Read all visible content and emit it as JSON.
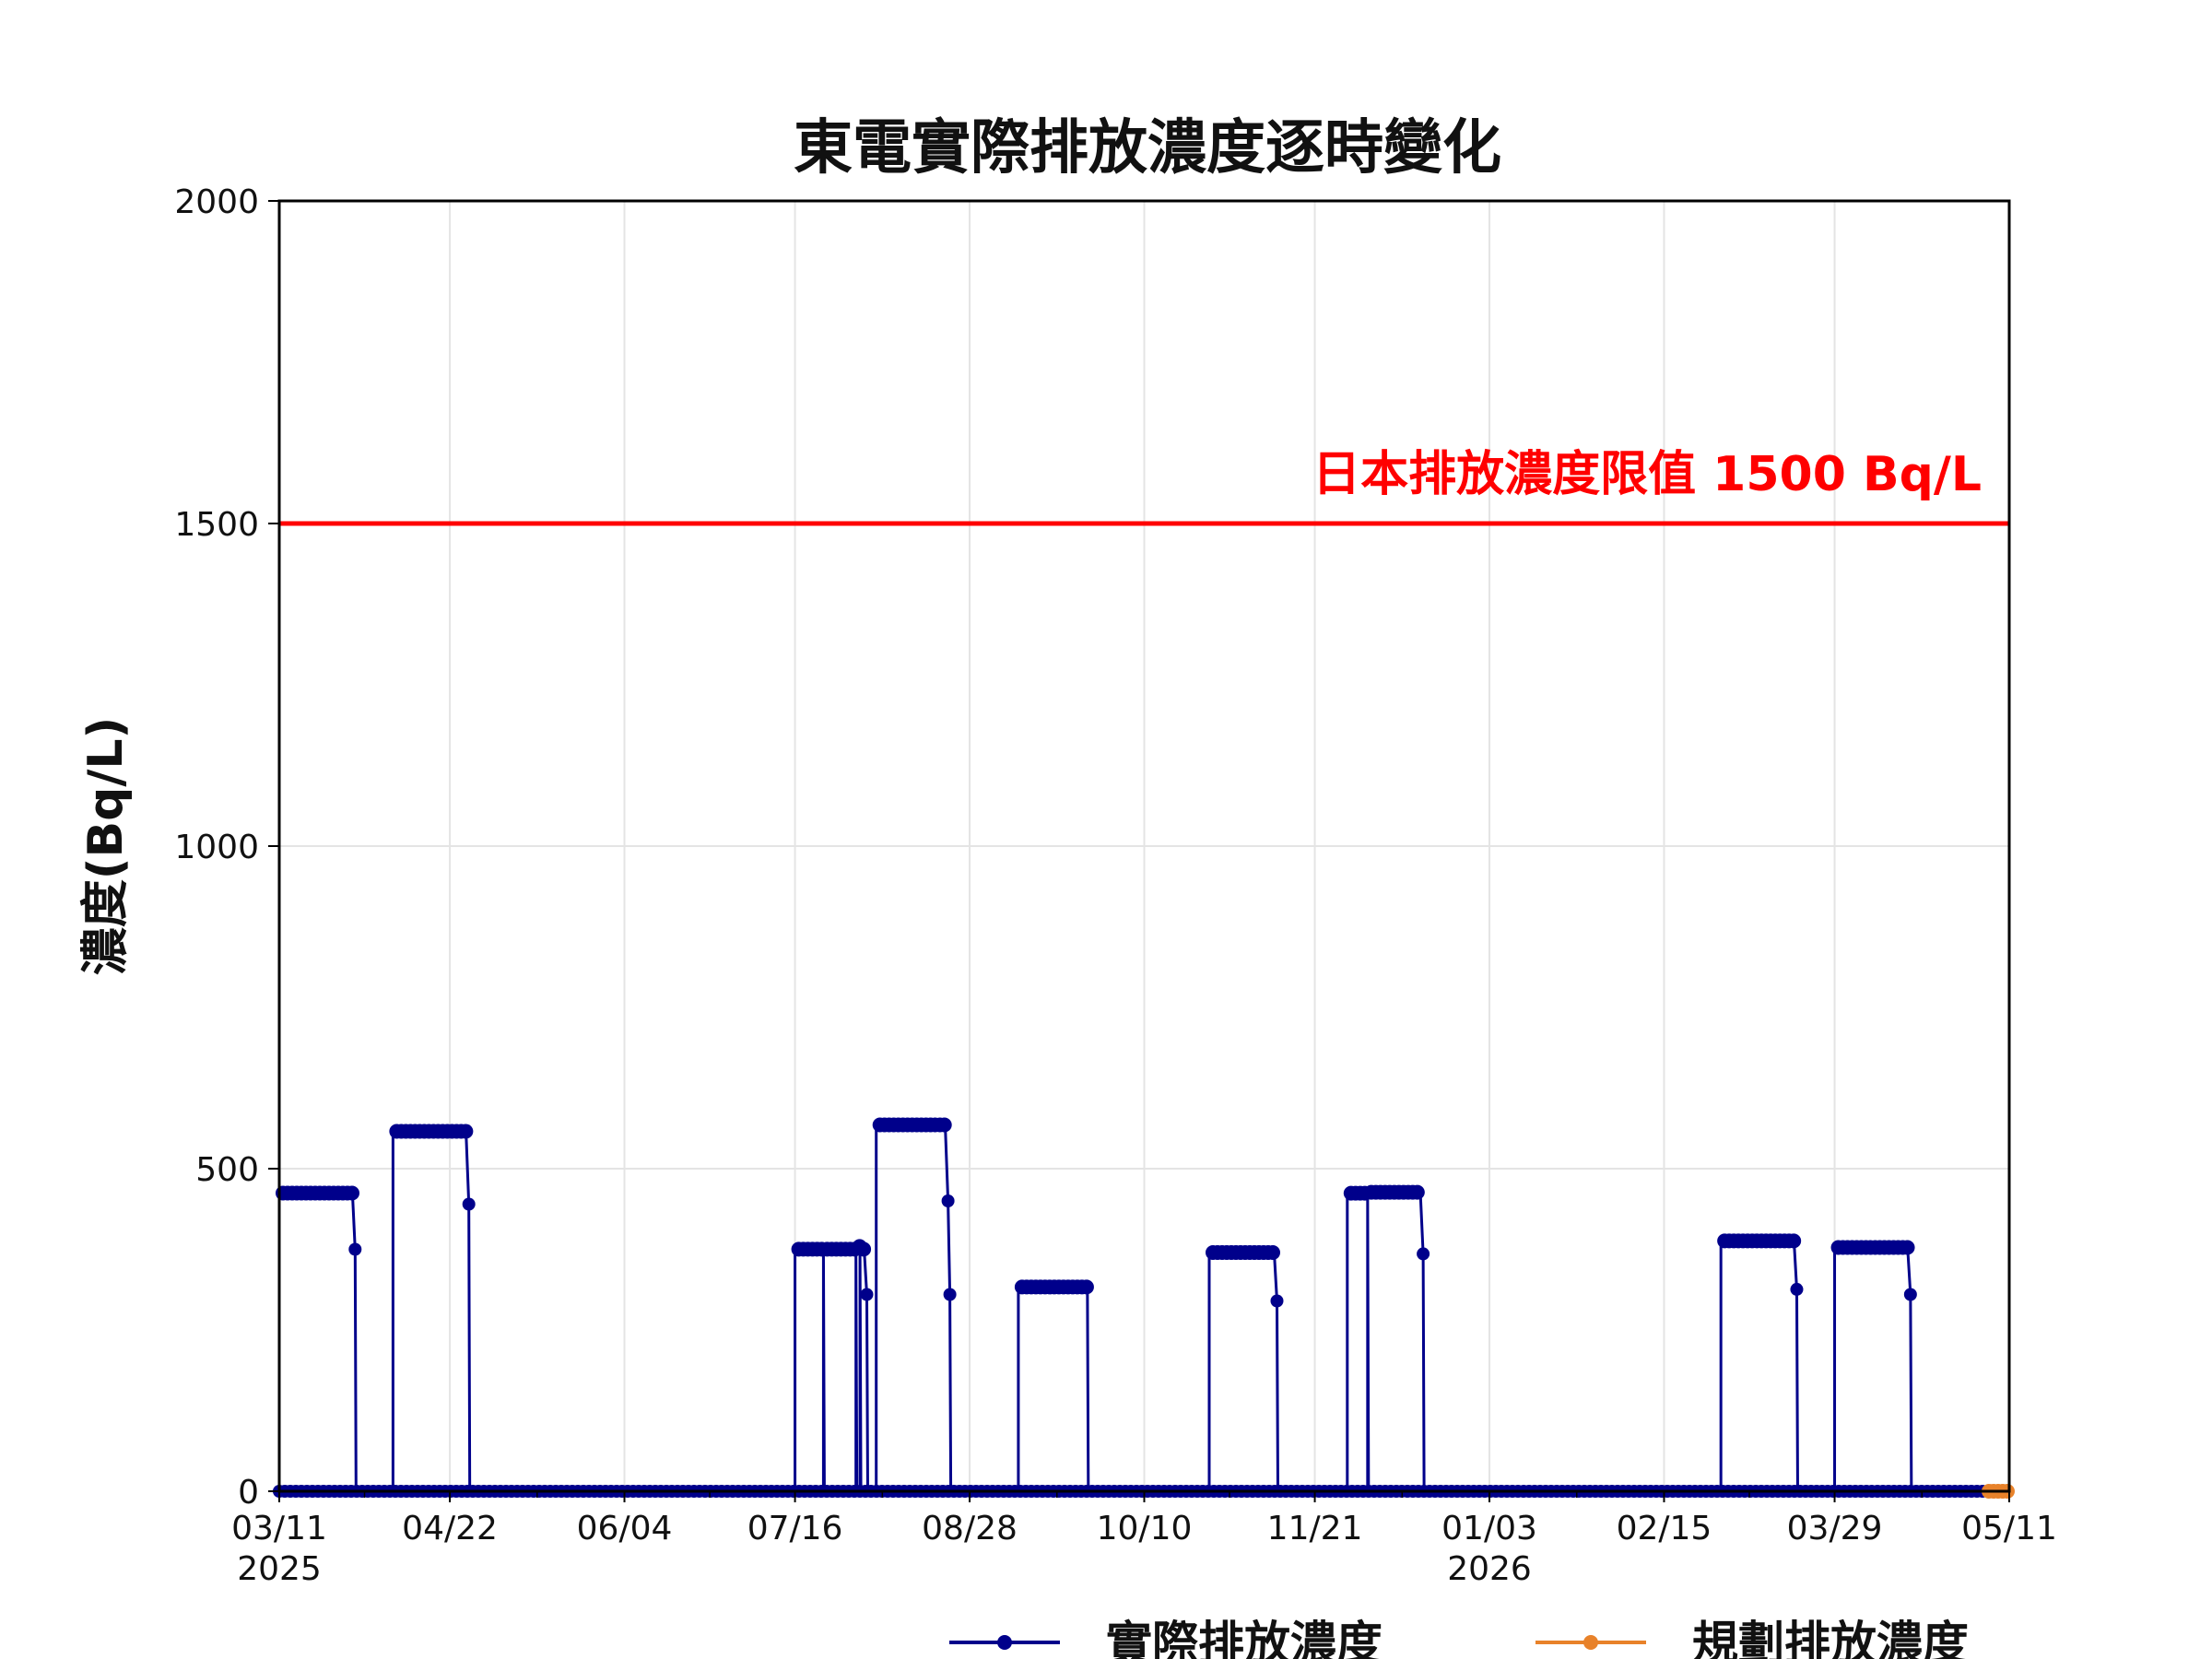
{
  "chart_data": {
    "type": "line",
    "title": "東電實際排放濃度逐時變化",
    "ylabel": "濃度(Bq/L)",
    "xlabel": "",
    "ylim": [
      0,
      2000
    ],
    "yticks": [
      0,
      500,
      1000,
      1500,
      2000
    ],
    "xlim": [
      "2025-03-11",
      "2026-05-11"
    ],
    "xticks": [
      {
        "date": "2025-03-11",
        "label": "03/11",
        "sublabel": "2025"
      },
      {
        "date": "2025-04-22",
        "label": "04/22",
        "sublabel": ""
      },
      {
        "date": "2025-06-04",
        "label": "06/04",
        "sublabel": ""
      },
      {
        "date": "2025-07-16",
        "label": "07/16",
        "sublabel": ""
      },
      {
        "date": "2025-08-28",
        "label": "08/28",
        "sublabel": ""
      },
      {
        "date": "2025-10-10",
        "label": "10/10",
        "sublabel": ""
      },
      {
        "date": "2025-11-21",
        "label": "11/21",
        "sublabel": ""
      },
      {
        "date": "2026-01-03",
        "label": "01/03",
        "sublabel": "2026"
      },
      {
        "date": "2026-02-15",
        "label": "02/15",
        "sublabel": ""
      },
      {
        "date": "2026-03-29",
        "label": "03/29",
        "sublabel": ""
      },
      {
        "date": "2026-05-11",
        "label": "05/11",
        "sublabel": ""
      }
    ],
    "grid": true,
    "legend_position": "bottom-right",
    "reference_line": {
      "value": 1500,
      "label": "日本排放濃度限值 1500 Bq/L",
      "color": "#ff0000"
    },
    "series": [
      {
        "name": "實際排放濃度",
        "color": "#00008b",
        "segments": [
          {
            "start": "2025-03-11",
            "end": "2025-03-29",
            "value": 465,
            "tail": 375
          },
          {
            "start": "2025-04-08",
            "end": "2025-04-26",
            "value": 555,
            "tail": 445
          },
          {
            "start": "2025-07-16",
            "end": "2025-07-23",
            "value": 378
          },
          {
            "start": "2025-07-23",
            "end": "2025-07-31",
            "value": 378
          },
          {
            "start": "2025-07-31",
            "end": "2025-08-01",
            "value": 378
          },
          {
            "start": "2025-08-01",
            "end": "2025-08-02",
            "value": 378,
            "tail": 305
          },
          {
            "start": "2025-08-05",
            "end": "2025-08-22",
            "value": 565,
            "tail": 450,
            "tail2": 305
          },
          {
            "start": "2025-09-09",
            "end": "2025-09-26",
            "value": 318
          },
          {
            "start": "2025-10-26",
            "end": "2025-11-11",
            "value": 370,
            "tail": 295
          },
          {
            "start": "2025-11-29",
            "end": "2025-12-04",
            "value": 462
          },
          {
            "start": "2025-12-04",
            "end": "2025-12-17",
            "value": 462,
            "tail": 368
          },
          {
            "start": "2026-03-01",
            "end": "2026-03-19",
            "value": 388,
            "tail": 313
          },
          {
            "start": "2026-03-29",
            "end": "2026-04-16",
            "value": 375,
            "tail": 305
          }
        ],
        "baseline": 0
      },
      {
        "name": "規劃排放濃度",
        "color": "#e8822a",
        "x": [
          "2026-05-06",
          "2026-05-11"
        ],
        "values": [
          0,
          0
        ]
      }
    ]
  }
}
